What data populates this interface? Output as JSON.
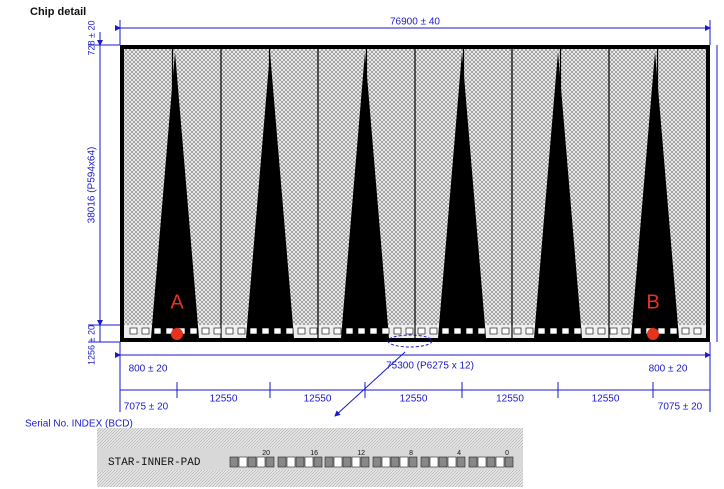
{
  "header": {
    "title": "Chip detail"
  },
  "dimensions": {
    "width": "76900 ± 40",
    "top_margin": "728 ± 20",
    "height": "38016 (P594x64)",
    "bottom_margin": "1256 ± 20",
    "left_pad_offset": "800 ± 20",
    "pad_span": "75300 (P6275 x 12)",
    "right_pad_offset": "800 ± 20",
    "left_edge": "7075 ± 20",
    "right_edge": "7075 ± 20",
    "pitches": [
      "12550",
      "12550",
      "12550",
      "12550",
      "12550"
    ]
  },
  "markers": [
    {
      "label": "A"
    },
    {
      "label": "B"
    }
  ],
  "serial": {
    "title": "Serial No. INDEX (BCD)",
    "pad_label": "STAR-INNER-PAD",
    "index": [
      "20",
      "16",
      "12",
      "8",
      "4",
      "0"
    ]
  }
}
